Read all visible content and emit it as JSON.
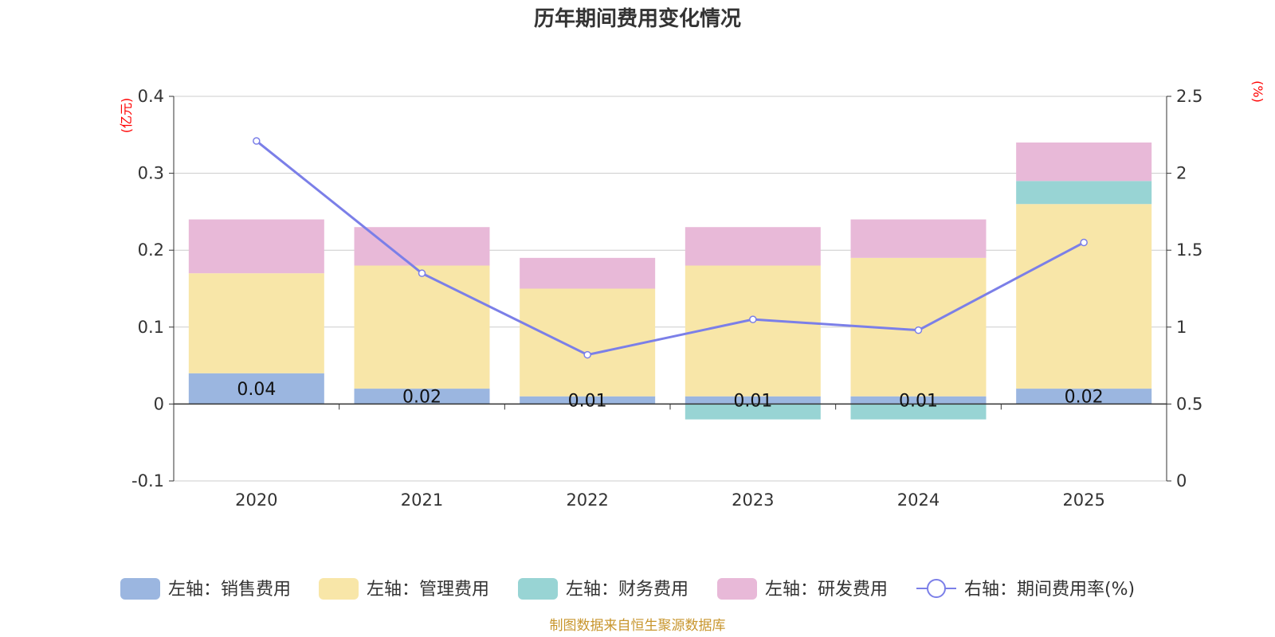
{
  "chart_data": {
    "type": "bar",
    "title": "历年期间费用变化情况",
    "categories": [
      "2020",
      "2021",
      "2022",
      "2023",
      "2024",
      "2025"
    ],
    "series": [
      {
        "name": "左轴：销售费用",
        "axis": "left",
        "color": "#9bb6e0",
        "values": [
          0.04,
          0.02,
          0.01,
          0.01,
          0.01,
          0.02
        ]
      },
      {
        "name": "左轴：管理费用",
        "axis": "left",
        "color": "#f8e6a8",
        "values": [
          0.13,
          0.16,
          0.14,
          0.17,
          0.18,
          0.24
        ]
      },
      {
        "name": "左轴：财务费用",
        "axis": "left",
        "color": "#98d4d4",
        "values": [
          0,
          0,
          0,
          -0.02,
          -0.02,
          0.03
        ]
      },
      {
        "name": "左轴：研发费用",
        "axis": "left",
        "color": "#e8b9d8",
        "values": [
          0.07,
          0.05,
          0.04,
          0.05,
          0.05,
          0.05
        ]
      },
      {
        "name": "右轴：期间费用率(%)",
        "axis": "right",
        "type": "line",
        "color": "#7b7fe8",
        "values": [
          2.21,
          1.35,
          0.82,
          1.05,
          0.98,
          1.55
        ]
      }
    ],
    "bar_labels": [
      "0.04",
      "0.02",
      "0.01",
      "0.01",
      "0.01",
      "0.02"
    ],
    "y_left": {
      "unit": "(亿元)",
      "ylim": [
        -0.1,
        0.4
      ],
      "ticks": [
        "0.4",
        "0.3",
        "0.2",
        "0.1",
        "0",
        "-0.1"
      ],
      "tick_values": [
        0.4,
        0.3,
        0.2,
        0.1,
        0,
        -0.1
      ]
    },
    "y_right": {
      "unit": "(%)",
      "ylim": [
        0,
        2.5
      ],
      "ticks": [
        "2.5",
        "2",
        "1.5",
        "1",
        "0.5",
        "0"
      ],
      "tick_values": [
        2.5,
        2,
        1.5,
        1,
        0.5,
        0
      ]
    },
    "grid": true,
    "legend_position": "bottom",
    "source": "制图数据来自恒生聚源数据库"
  }
}
